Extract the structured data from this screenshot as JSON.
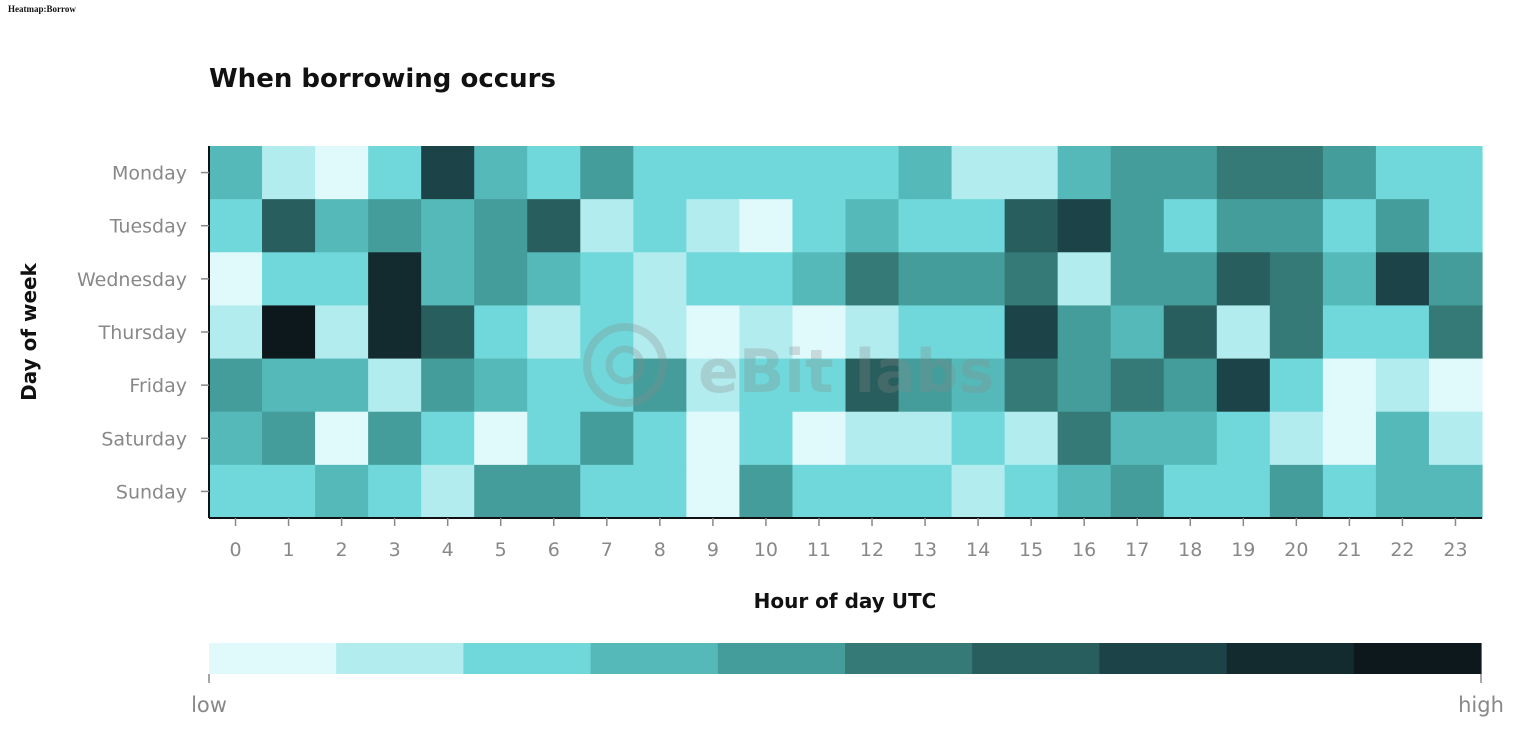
{
  "page_label": "Heatmap:Borrow",
  "watermark": "eBit labs",
  "chart_data": {
    "type": "heatmap",
    "title": "When borrowing occurs",
    "xlabel": "Hour of day UTC",
    "ylabel": "Day of week",
    "x": [
      "0",
      "1",
      "2",
      "3",
      "4",
      "5",
      "6",
      "7",
      "8",
      "9",
      "10",
      "11",
      "12",
      "13",
      "14",
      "15",
      "16",
      "17",
      "18",
      "19",
      "20",
      "21",
      "22",
      "23"
    ],
    "y": [
      "Monday",
      "Tuesday",
      "Wednesday",
      "Thursday",
      "Friday",
      "Saturday",
      "Sunday"
    ],
    "values": [
      [
        3,
        1,
        0,
        2,
        7,
        3,
        2,
        4,
        2,
        2,
        2,
        2,
        2,
        3,
        1,
        1,
        3,
        4,
        4,
        5,
        5,
        4,
        2,
        2
      ],
      [
        2,
        6,
        3,
        4,
        3,
        4,
        6,
        1,
        2,
        1,
        0,
        2,
        3,
        2,
        2,
        6,
        7,
        4,
        2,
        4,
        4,
        2,
        4,
        2
      ],
      [
        0,
        2,
        2,
        8,
        3,
        4,
        3,
        2,
        1,
        2,
        2,
        3,
        5,
        4,
        4,
        5,
        1,
        4,
        4,
        6,
        5,
        3,
        7,
        4
      ],
      [
        1,
        9,
        1,
        8,
        6,
        2,
        1,
        2,
        1,
        0,
        1,
        0,
        1,
        2,
        2,
        7,
        4,
        3,
        6,
        1,
        5,
        2,
        2,
        5
      ],
      [
        4,
        3,
        3,
        1,
        4,
        3,
        2,
        2,
        4,
        1,
        2,
        2,
        6,
        4,
        3,
        5,
        4,
        5,
        4,
        7,
        2,
        0,
        1,
        0
      ],
      [
        3,
        4,
        0,
        4,
        2,
        0,
        2,
        4,
        2,
        0,
        2,
        0,
        1,
        1,
        2,
        1,
        5,
        3,
        3,
        2,
        1,
        0,
        3,
        1
      ],
      [
        2,
        2,
        3,
        2,
        1,
        4,
        4,
        2,
        2,
        0,
        4,
        2,
        2,
        2,
        1,
        2,
        3,
        4,
        2,
        2,
        4,
        2,
        3,
        3
      ]
    ],
    "colorscale": [
      "#e0f9fb",
      "#b2ecee",
      "#70d8da",
      "#56b9b9",
      "#459d9b",
      "#357a76",
      "#285e5d",
      "#1c4448",
      "#132a2f",
      "#0d181c"
    ],
    "legend": {
      "low_label": "low",
      "high_label": "high",
      "placement": "bottom"
    }
  }
}
